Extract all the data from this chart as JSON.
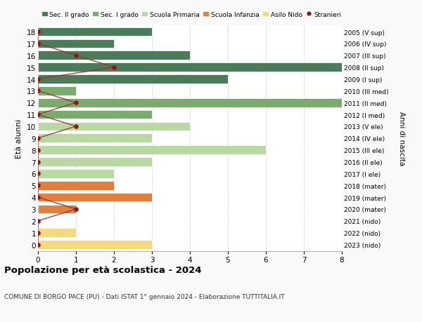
{
  "ages": [
    18,
    17,
    16,
    15,
    14,
    13,
    12,
    11,
    10,
    9,
    8,
    7,
    6,
    5,
    4,
    3,
    2,
    1,
    0
  ],
  "years_labels": [
    "2005 (V sup)",
    "2006 (IV sup)",
    "2007 (III sup)",
    "2008 (II sup)",
    "2009 (I sup)",
    "2010 (III med)",
    "2011 (II med)",
    "2012 (I med)",
    "2013 (V ele)",
    "2014 (IV ele)",
    "2015 (III ele)",
    "2016 (II ele)",
    "2017 (I ele)",
    "2018 (mater)",
    "2019 (mater)",
    "2020 (mater)",
    "2021 (nido)",
    "2022 (nido)",
    "2023 (nido)"
  ],
  "values": [
    3,
    2,
    4,
    8,
    5,
    1,
    8,
    3,
    4,
    3,
    6,
    3,
    2,
    2,
    3,
    1,
    0,
    1,
    3
  ],
  "stranieri": [
    0,
    0,
    1,
    2,
    0,
    0,
    1,
    0,
    1,
    0,
    0,
    0,
    0,
    0,
    0,
    1,
    0,
    0,
    0
  ],
  "colors": {
    "sec2": "#4a7c59",
    "sec1": "#7aaa6e",
    "primaria": "#b8d9a3",
    "infanzia": "#e07f3e",
    "nido": "#f5d97e",
    "stranieri_dot": "#8b1a1a",
    "stranieri_line": "#a03030"
  },
  "category_ranges": {
    "sec2": [
      14,
      18
    ],
    "sec1": [
      11,
      13
    ],
    "primaria": [
      6,
      10
    ],
    "infanzia": [
      3,
      5
    ],
    "nido": [
      0,
      2
    ]
  },
  "xlim": [
    0,
    8
  ],
  "xticks": [
    0,
    1,
    2,
    3,
    4,
    5,
    6,
    7,
    8
  ],
  "title": "Popolazione per età scolastica - 2024",
  "subtitle": "COMUNE DI BORGO PACE (PU) - Dati ISTAT 1° gennaio 2024 - Elaborazione TUTTITALIA.IT",
  "ylabel": "Età alunni",
  "right_ylabel": "Anni di nascita",
  "legend_labels": [
    "Sec. II grado",
    "Sec. I grado",
    "Scuola Primaria",
    "Scuola Infanzia",
    "Asilo Nido",
    "Stranieri"
  ],
  "bar_height": 0.75,
  "bg_color": "#f9f9f9",
  "plot_bg": "#ffffff"
}
